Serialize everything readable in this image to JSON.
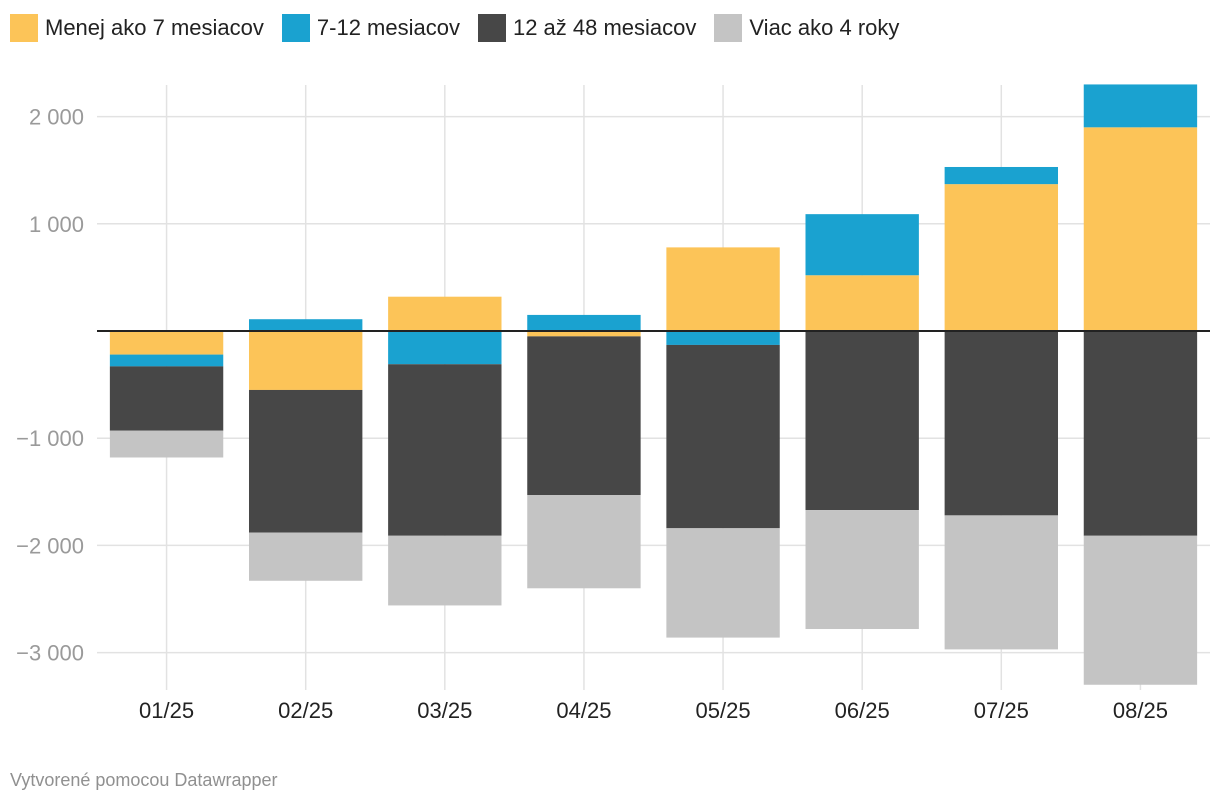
{
  "chart_data": {
    "type": "bar",
    "stacked": true,
    "categories": [
      "01/25",
      "02/25",
      "03/25",
      "04/25",
      "05/25",
      "06/25",
      "07/25",
      "08/25"
    ],
    "series": [
      {
        "name": "Menej ako 7 mesiacov",
        "color": "#fcc458",
        "values": [
          -220,
          -550,
          320,
          -50,
          780,
          520,
          1370,
          1900
        ]
      },
      {
        "name": "7-12 mesiacov",
        "color": "#1aa2d0",
        "values": [
          -110,
          110,
          -310,
          150,
          -130,
          570,
          160,
          400
        ]
      },
      {
        "name": "12 až 48 mesiacov",
        "color": "#474747",
        "values": [
          -600,
          -1330,
          -1600,
          -1480,
          -1710,
          -1670,
          -1720,
          -1910
        ]
      },
      {
        "name": "Viac ako 4 roky",
        "color": "#c4c4c4",
        "values": [
          -250,
          -450,
          -650,
          -870,
          -1020,
          -1110,
          -1250,
          -1390
        ]
      }
    ],
    "ylim": [
      -3300,
      2300
    ],
    "yticks": [
      -3000,
      -2000,
      -1000,
      1000,
      2000
    ],
    "ytick_labels": [
      "−3 000",
      "−2 000",
      "−1 000",
      "1 000",
      "2 000"
    ],
    "legend_position": "top-left",
    "grid": true,
    "title": "",
    "xlabel": "",
    "ylabel": ""
  },
  "footer": {
    "credit": "Vytvorené pomocou Datawrapper"
  }
}
